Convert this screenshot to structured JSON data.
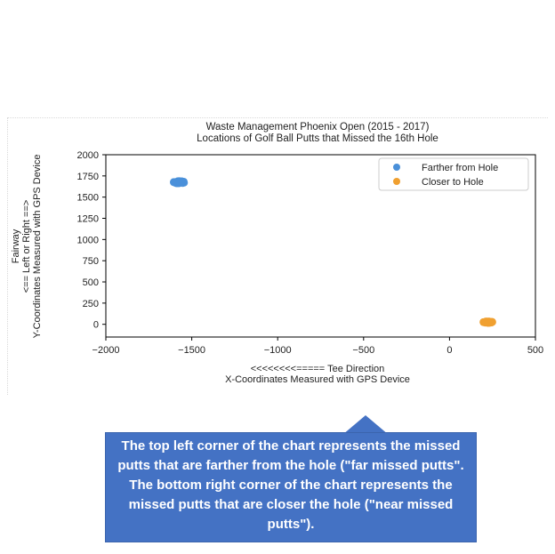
{
  "chart_data": {
    "type": "scatter",
    "title": "Waste Management Phoenix Open (2015 - 2017)",
    "subtitle": "Locations of Golf Ball Putts that Missed the 16th Hole",
    "xlabel_line1": "<<<<<<<<===== Tee Direction",
    "xlabel_line2": "X-Coordinates Measured with GPS Device",
    "ylabel_line1": "Fairway",
    "ylabel_line2": "<== Left or Right ==>",
    "ylabel_line3": "Y-Coordinates Measured with GPS Device",
    "xlim": [
      -2000,
      500
    ],
    "ylim": [
      -150,
      2000
    ],
    "xticks": [
      -2000,
      -1500,
      -1000,
      -500,
      0,
      500
    ],
    "xtick_labels": [
      "−2000",
      "−1500",
      "−1000",
      "−500",
      "0",
      "500"
    ],
    "yticks": [
      0,
      250,
      500,
      750,
      1000,
      1250,
      1500,
      1750,
      2000
    ],
    "ytick_labels": [
      "0",
      "250",
      "500",
      "750",
      "1000",
      "1250",
      "1500",
      "1750",
      "2000"
    ],
    "grid": false,
    "legend_position": "top-right",
    "series": [
      {
        "name": "Farther from Hole",
        "color": "#4a90d9",
        "center": [
          -1575,
          1675
        ],
        "spread": [
          35,
          18
        ],
        "count": 60
      },
      {
        "name": "Closer to Hole",
        "color": "#f0a030",
        "center": [
          225,
          25
        ],
        "spread": [
          30,
          14
        ],
        "count": 60
      }
    ]
  },
  "callout": {
    "text": "The top left corner of the chart represents the missed putts that are farther from the hole (\"far missed putts\". The bottom right corner of the chart represents the missed putts that are closer the hole (\"near missed putts\")."
  }
}
